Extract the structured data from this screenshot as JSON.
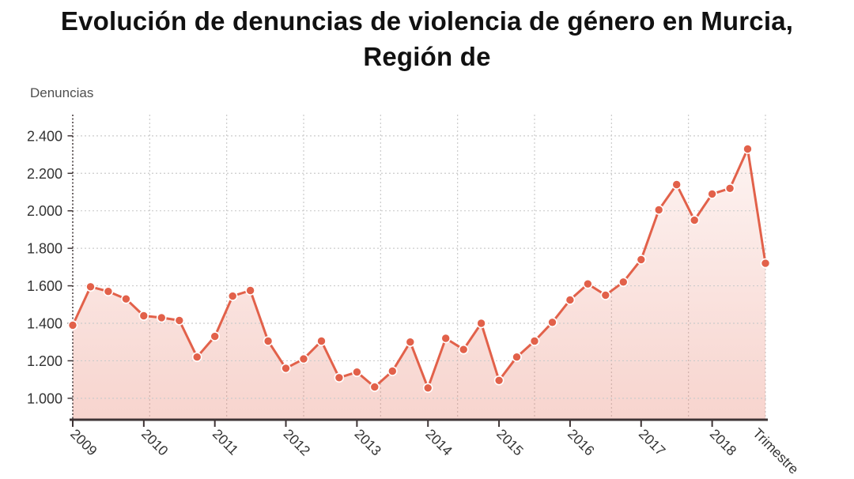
{
  "title": {
    "line1": "Evolución de denuncias de violencia de género en Murcia,",
    "line2": "Región de"
  },
  "y_axis": {
    "title": "Denuncias"
  },
  "x_axis": {
    "title": "Trimestre"
  },
  "chart_data": {
    "type": "line",
    "title": "Evolución de denuncias de violencia de género en Murcia, Región de",
    "xlabel": "Trimestre",
    "ylabel": "Denuncias",
    "legend": "none",
    "grid": "dashed",
    "categories": [
      "2009",
      "2010",
      "2011",
      "2012",
      "2013",
      "2014",
      "2015",
      "2016",
      "2017",
      "2018"
    ],
    "points_per_category": 4,
    "x": [
      "2009-T1",
      "2009-T2",
      "2009-T3",
      "2009-T4",
      "2010-T1",
      "2010-T2",
      "2010-T3",
      "2010-T4",
      "2011-T1",
      "2011-T2",
      "2011-T3",
      "2011-T4",
      "2012-T1",
      "2012-T2",
      "2012-T3",
      "2012-T4",
      "2013-T1",
      "2013-T2",
      "2013-T3",
      "2013-T4",
      "2014-T1",
      "2014-T2",
      "2014-T3",
      "2014-T4",
      "2015-T1",
      "2015-T2",
      "2015-T3",
      "2015-T4",
      "2016-T1",
      "2016-T2",
      "2016-T3",
      "2016-T4",
      "2017-T1",
      "2017-T2",
      "2017-T3",
      "2017-T4",
      "2018-T1",
      "2018-T2",
      "2018-T3",
      "2018-T4"
    ],
    "values": [
      1390,
      1595,
      1570,
      1530,
      1440,
      1430,
      1415,
      1220,
      1330,
      1545,
      1575,
      1305,
      1160,
      1210,
      1305,
      1110,
      1140,
      1060,
      1145,
      1300,
      1055,
      1320,
      1260,
      1400,
      1095,
      1220,
      1305,
      1405,
      1525,
      1610,
      1550,
      1620,
      1740,
      2005,
      2140,
      1950,
      2090,
      2120,
      2330,
      1720
    ],
    "y_tick_values": [
      1000,
      1200,
      1400,
      1600,
      1800,
      2000,
      2200,
      2400
    ],
    "y_tick_labels": [
      "1.000",
      "1.200",
      "1.400",
      "1.600",
      "1.800",
      "2.000",
      "2.200",
      "2.400"
    ],
    "ylim": [
      885,
      2515
    ],
    "colors": {
      "line": "#e2614a",
      "point": "#e2614a",
      "point_ring": "#ffffff",
      "area_top": "rgba(226,97,74,0.05)",
      "area_bottom": "rgba(226,97,74,0.27)",
      "grid": "#cbcbcb",
      "axis": "#3e3435",
      "tick_text": "#333333",
      "axis_title_text": "#4e4e4e"
    }
  }
}
